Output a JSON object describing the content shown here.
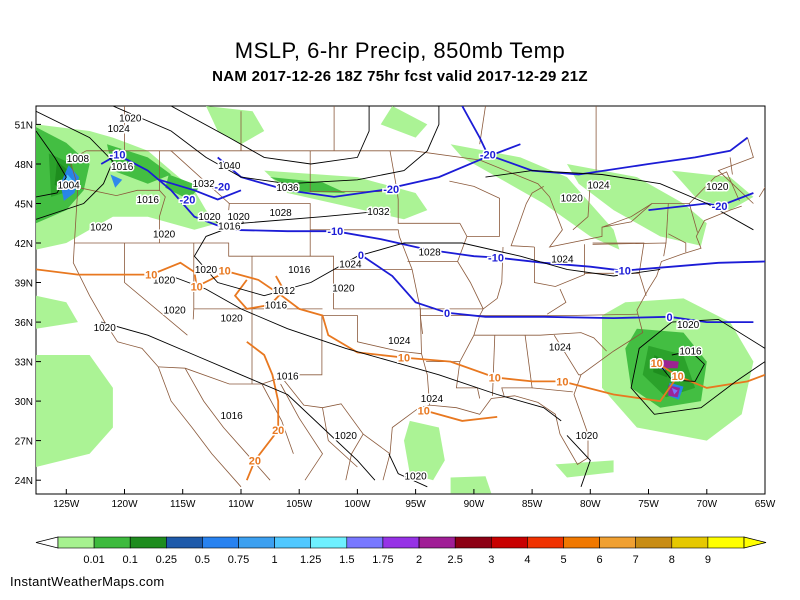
{
  "header": {
    "title": "MSLP, 6-hr Precip, 850mb Temp",
    "subtitle": "NAM 2017-12-26 18Z 75hr fcst valid 2017-12-29 21Z"
  },
  "map": {
    "lat_labels": [
      "51N",
      "48N",
      "45N",
      "42N",
      "39N",
      "36N",
      "33N",
      "30N",
      "27N",
      "24N"
    ],
    "lon_labels": [
      "125W",
      "120W",
      "115W",
      "110W",
      "105W",
      "100W",
      "95W",
      "90W",
      "85W",
      "80W",
      "75W",
      "70W",
      "65W"
    ],
    "isobar_labels": [
      {
        "text": "1020",
        "lat": 51.5,
        "lon": -119.5
      },
      {
        "text": "1024",
        "lat": 50.7,
        "lon": -120.5
      },
      {
        "text": "1008",
        "lat": 48.4,
        "lon": -124.0
      },
      {
        "text": "1016",
        "lat": 47.8,
        "lon": -120.2
      },
      {
        "text": "1004",
        "lat": 46.4,
        "lon": -124.8
      },
      {
        "text": "1016",
        "lat": 45.3,
        "lon": -118.0
      },
      {
        "text": "1040",
        "lat": 47.9,
        "lon": -111.0
      },
      {
        "text": "1032",
        "lat": 46.5,
        "lon": -113.2
      },
      {
        "text": "1036",
        "lat": 46.2,
        "lon": -106.0
      },
      {
        "text": "1028",
        "lat": 44.3,
        "lon": -106.6
      },
      {
        "text": "1032",
        "lat": 44.4,
        "lon": -98.2
      },
      {
        "text": "1020",
        "lat": 44.0,
        "lon": -112.7
      },
      {
        "text": "1020",
        "lat": 44.0,
        "lon": -110.2
      },
      {
        "text": "1016",
        "lat": 43.3,
        "lon": -111.0
      },
      {
        "text": "1020",
        "lat": 43.2,
        "lon": -122.0
      },
      {
        "text": "1020",
        "lat": 42.7,
        "lon": -116.6
      },
      {
        "text": "1028",
        "lat": 41.3,
        "lon": -93.8
      },
      {
        "text": "1024",
        "lat": 40.4,
        "lon": -100.6
      },
      {
        "text": "1024",
        "lat": 40.8,
        "lon": -82.4
      },
      {
        "text": "1020",
        "lat": 45.4,
        "lon": -81.6
      },
      {
        "text": "1024",
        "lat": 46.4,
        "lon": -79.3
      },
      {
        "text": "1020",
        "lat": 46.3,
        "lon": -69.1
      },
      {
        "text": "1020",
        "lat": 40.0,
        "lon": -113.0
      },
      {
        "text": "1020",
        "lat": 39.2,
        "lon": -116.6
      },
      {
        "text": "1016",
        "lat": 40.0,
        "lon": -105.0
      },
      {
        "text": "1012",
        "lat": 38.4,
        "lon": -106.3
      },
      {
        "text": "1016",
        "lat": 37.3,
        "lon": -107.0
      },
      {
        "text": "1020",
        "lat": 38.6,
        "lon": -101.2
      },
      {
        "text": "1020",
        "lat": 36.9,
        "lon": -115.7
      },
      {
        "text": "1020",
        "lat": 36.3,
        "lon": -110.8
      },
      {
        "text": "1020",
        "lat": 35.6,
        "lon": -121.7
      },
      {
        "text": "1024",
        "lat": 34.6,
        "lon": -96.4
      },
      {
        "text": "1024",
        "lat": 34.1,
        "lon": -82.6
      },
      {
        "text": "1020",
        "lat": 35.8,
        "lon": -71.6
      },
      {
        "text": "1016",
        "lat": 33.8,
        "lon": -71.4
      },
      {
        "text": "1016",
        "lat": 31.9,
        "lon": -106.0
      },
      {
        "text": "1024",
        "lat": 30.2,
        "lon": -93.6
      },
      {
        "text": "1016",
        "lat": 28.9,
        "lon": -110.8
      },
      {
        "text": "1020",
        "lat": 27.4,
        "lon": -101.0
      },
      {
        "text": "1020",
        "lat": 27.4,
        "lon": -80.3
      },
      {
        "text": "1020",
        "lat": 24.3,
        "lon": -95.0
      }
    ],
    "temp_labels": [
      {
        "text": "-20",
        "lat": 48.7,
        "lon": -88.8,
        "color": "#1c1cd6"
      },
      {
        "text": "-20",
        "lat": 44.8,
        "lon": -68.9,
        "color": "#1c1cd6"
      },
      {
        "text": "-20",
        "lat": 46.3,
        "lon": -111.6,
        "color": "#1c1cd6"
      },
      {
        "text": "-20",
        "lat": 45.3,
        "lon": -114.6,
        "color": "#1c1cd6"
      },
      {
        "text": "-20",
        "lat": 46.1,
        "lon": -97.1,
        "color": "#1c1cd6"
      },
      {
        "text": "-10",
        "lat": 42.9,
        "lon": -101.9,
        "color": "#1c1cd6"
      },
      {
        "text": "-10",
        "lat": 40.9,
        "lon": -88.1,
        "color": "#1c1cd6"
      },
      {
        "text": "-10",
        "lat": 39.9,
        "lon": -77.2,
        "color": "#1c1cd6"
      },
      {
        "text": "-10",
        "lat": 48.7,
        "lon": -120.6,
        "color": "#1c1cd6"
      },
      {
        "text": "0",
        "lat": 41.1,
        "lon": -99.7,
        "color": "#1c1cd6"
      },
      {
        "text": "0",
        "lat": 36.7,
        "lon": -92.3,
        "color": "#1c1cd6"
      },
      {
        "text": "0",
        "lat": 36.4,
        "lon": -73.2,
        "color": "#1c1cd6"
      },
      {
        "text": "10",
        "lat": 39.6,
        "lon": -117.7,
        "color": "#e87820"
      },
      {
        "text": "10",
        "lat": 38.7,
        "lon": -113.8,
        "color": "#e87820"
      },
      {
        "text": "10",
        "lat": 39.9,
        "lon": -111.4,
        "color": "#e87820"
      },
      {
        "text": "10",
        "lat": 33.3,
        "lon": -96.0,
        "color": "#e87820"
      },
      {
        "text": "10",
        "lat": 31.8,
        "lon": -88.2,
        "color": "#e87820"
      },
      {
        "text": "10",
        "lat": 31.5,
        "lon": -82.4,
        "color": "#e87820"
      },
      {
        "text": "10",
        "lat": 29.3,
        "lon": -94.3,
        "color": "#e87820"
      },
      {
        "text": "10",
        "lat": 31.9,
        "lon": -72.5,
        "color": "#e87820"
      },
      {
        "text": "10",
        "lat": 32.9,
        "lon": -74.3,
        "color": "#e87820"
      },
      {
        "text": "20",
        "lat": 27.8,
        "lon": -106.8,
        "color": "#e87820"
      },
      {
        "text": "20",
        "lat": 25.5,
        "lon": -108.8,
        "color": "#e87820"
      }
    ],
    "isotherm_colors": {
      "cold": "#1c1cd6",
      "warm": "#e87820"
    },
    "boundary_color": "#8b5a3c",
    "precip_colors": [
      "#a6f28f",
      "#3dba3d",
      "#2aa02a",
      "#1e8c1e",
      "#1e5aaa",
      "#2882f0",
      "#3ca0f0",
      "#50c8ff",
      "#6ef0ff",
      "#7878ff",
      "#9632e6",
      "#a01e96",
      "#8c0014",
      "#c80000",
      "#f03200",
      "#f07800",
      "#f0a032",
      "#c88c14",
      "#e6c800",
      "#ffff00"
    ]
  },
  "legend": {
    "labels": [
      "0.01",
      "0.1",
      "0.25",
      "0.5",
      "0.75",
      "1",
      "1.25",
      "1.5",
      "1.75",
      "2",
      "2.5",
      "3",
      "4",
      "5",
      "6",
      "7",
      "8",
      "9"
    ],
    "colors": [
      "#a6f28f",
      "#3dba3d",
      "#1e8c1e",
      "#1e5aaa",
      "#2882f0",
      "#3ca0f0",
      "#50c8ff",
      "#6ef0ff",
      "#7878ff",
      "#9632e6",
      "#a01e96",
      "#8c0014",
      "#c80000",
      "#f03200",
      "#f07800",
      "#f0a032",
      "#c88c14",
      "#e6c800",
      "#ffff00"
    ]
  },
  "footer": {
    "credit": "InstantWeatherMaps.com"
  }
}
